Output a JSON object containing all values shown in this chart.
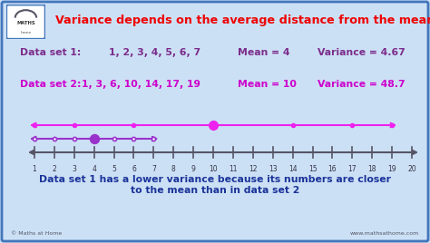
{
  "title": "Variance depends on the average distance from the mean",
  "title_color": "#ee0000",
  "bg_color": "#cce0f5",
  "border_color": "#4477bb",
  "text_color_purple": "#7b2d8b",
  "text_color_magenta": "#cc00cc",
  "line1_label": "Data set 1:",
  "line1_data": "1, 2, 3, 4, 5, 6, 7",
  "line1_mean": "Mean = 4",
  "line1_variance": "Variance = 4.67",
  "line2_label": "Data set 2:",
  "line2_data": "1, 3, 6, 10, 14, 17, 19",
  "line2_mean": "Mean = 10",
  "line2_variance": "Variance = 48.7",
  "ds1_points": [
    1,
    2,
    3,
    4,
    5,
    6,
    7
  ],
  "ds1_mean": 4,
  "ds2_points": [
    1,
    3,
    6,
    10,
    14,
    17,
    19
  ],
  "ds2_mean": 10,
  "number_line_min": 1,
  "number_line_max": 20,
  "axis_color": "#555566",
  "ds1_color": "#9933cc",
  "ds2_color": "#ee22ee",
  "footer_text": "Data set 1 has a lower variance because its numbers are closer\nto the mean than in data set 2",
  "footer_color": "#1a3399",
  "copyright_text": "© Maths at Home",
  "website_text": "www.mathsathome.com"
}
